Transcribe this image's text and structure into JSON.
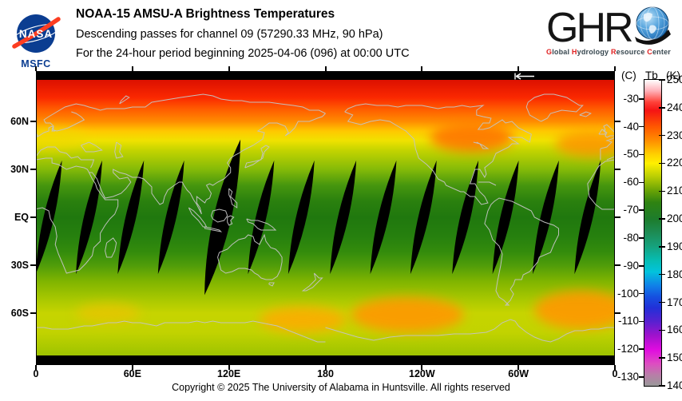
{
  "header": {
    "nasa": {
      "wordmark": "NASA",
      "center": "MSFC"
    },
    "title": "NOAA-15 AMSU-A Brightness Temperatures",
    "line2": "Descending passes for channel 09 (57290.33 MHz, 90 hPa)",
    "line3": "For the 24-hour period beginning 2025-04-06 (096) at 00:00 UTC",
    "ghrc": {
      "letters": "GHR",
      "tagline_words": [
        "Global",
        "Hydrology",
        "Resource",
        "Center"
      ]
    }
  },
  "map": {
    "lat_ticks": [
      {
        "label": "60N",
        "lat": 60
      },
      {
        "label": "30N",
        "lat": 30
      },
      {
        "label": "EQ",
        "lat": 0
      },
      {
        "label": "30S",
        "lat": -30
      },
      {
        "label": "60S",
        "lat": -60
      }
    ],
    "lon_ticks": [
      {
        "label": "0",
        "lon": 0
      },
      {
        "label": "60E",
        "lon": 60
      },
      {
        "label": "120E",
        "lon": 120
      },
      {
        "label": "180",
        "lon": 180
      },
      {
        "label": "120W",
        "lon": 240
      },
      {
        "label": "60W",
        "lon": 300
      },
      {
        "label": "0",
        "lon": 360
      }
    ]
  },
  "colorbar": {
    "header_left": "(C)",
    "header_mid": "Tb",
    "header_right": "(K)",
    "kelvin_ticks": [
      250,
      240,
      230,
      220,
      210,
      200,
      190,
      180,
      170,
      160,
      150,
      140
    ],
    "celsius_ticks": [
      -30,
      -40,
      -50,
      -60,
      -70,
      -80,
      -90,
      -100,
      -110,
      -120,
      -130
    ]
  },
  "footer": {
    "copyright": "Copyright © 2025 The University of Alabama in Huntsville.  All rights reserved"
  },
  "chart_data": {
    "type": "heatmap",
    "title": "NOAA-15 AMSU-A Brightness Temperatures",
    "satellite": "NOAA-15",
    "instrument": "AMSU-A",
    "channel": "09",
    "frequency_mhz": 57290.33,
    "pressure_level_hpa": 90,
    "pass_type": "Descending",
    "period": "24-hour period beginning 2025-04-06 (096) at 00:00 UTC",
    "projection": "equirectangular world map, longitude 0E at left edge through 180 to 0 at right edge, 90N at top",
    "variable": "Brightness temperature Tb",
    "units_kelvin_range": [
      140,
      250
    ],
    "colorbar_gradient": [
      {
        "k": 250,
        "color": "#ffffff"
      },
      {
        "k": 246,
        "color": "#ffb0b8"
      },
      {
        "k": 242,
        "color": "#ff4038"
      },
      {
        "k": 239,
        "color": "#f51414"
      },
      {
        "k": 233,
        "color": "#ff5a00"
      },
      {
        "k": 228,
        "color": "#ff9000"
      },
      {
        "k": 223,
        "color": "#ffd200"
      },
      {
        "k": 220,
        "color": "#fff000"
      },
      {
        "k": 215,
        "color": "#b6cc04"
      },
      {
        "k": 210,
        "color": "#66a106"
      },
      {
        "k": 206,
        "color": "#2f8311"
      },
      {
        "k": 200,
        "color": "#1d7c2c"
      },
      {
        "k": 195,
        "color": "#1d8c55"
      },
      {
        "k": 190,
        "color": "#16a27e"
      },
      {
        "k": 185,
        "color": "#06bdb4"
      },
      {
        "k": 181,
        "color": "#02c3dc"
      },
      {
        "k": 176,
        "color": "#1080e8"
      },
      {
        "k": 172,
        "color": "#1550e0"
      },
      {
        "k": 168,
        "color": "#2230d8"
      },
      {
        "k": 163,
        "color": "#5a20d0"
      },
      {
        "k": 158,
        "color": "#a012cc"
      },
      {
        "k": 153,
        "color": "#e00ce0"
      },
      {
        "k": 148,
        "color": "#de4cc2"
      },
      {
        "k": 144,
        "color": "#b87ea8"
      },
      {
        "k": 140,
        "color": "#999999"
      }
    ],
    "zonal_gradient": [
      {
        "lat": 86,
        "color": "#dc1000"
      },
      {
        "lat": 75,
        "color": "#fa2800"
      },
      {
        "lat": 68,
        "color": "#ff5a00"
      },
      {
        "lat": 60,
        "color": "#ff8c00"
      },
      {
        "lat": 54,
        "color": "#ffc800"
      },
      {
        "lat": 48,
        "color": "#f0e200"
      },
      {
        "lat": 42,
        "color": "#c4d400"
      },
      {
        "lat": 30,
        "color": "#84ba08"
      },
      {
        "lat": 20,
        "color": "#46960e"
      },
      {
        "lat": 10,
        "color": "#2a800e"
      },
      {
        "lat": 0,
        "color": "#20780e"
      },
      {
        "lat": -12,
        "color": "#26800e"
      },
      {
        "lat": -22,
        "color": "#348c0c"
      },
      {
        "lat": -30,
        "color": "#4f9c0a"
      },
      {
        "lat": -40,
        "color": "#7fb400"
      },
      {
        "lat": -52,
        "color": "#abc900"
      },
      {
        "lat": -60,
        "color": "#c6d400"
      },
      {
        "lat": -72,
        "color": "#c2d300"
      },
      {
        "lat": -86,
        "color": "#9fc400"
      }
    ],
    "zonal_mean_tb_k": [
      {
        "lat": 85,
        "tb": 245
      },
      {
        "lat": 75,
        "tb": 241
      },
      {
        "lat": 65,
        "tb": 232
      },
      {
        "lat": 60,
        "tb": 228
      },
      {
        "lat": 50,
        "tb": 220
      },
      {
        "lat": 40,
        "tb": 213
      },
      {
        "lat": 30,
        "tb": 209
      },
      {
        "lat": 15,
        "tb": 203
      },
      {
        "lat": 0,
        "tb": 201
      },
      {
        "lat": -15,
        "tb": 204
      },
      {
        "lat": -30,
        "tb": 208
      },
      {
        "lat": -45,
        "tb": 214
      },
      {
        "lat": -55,
        "tb": 219
      },
      {
        "lat": -62,
        "tb": 223
      },
      {
        "lat": -75,
        "tb": 218
      },
      {
        "lat": -86,
        "tb": 214
      }
    ],
    "warm_anomalies": [
      {
        "lon_e": 166,
        "lat": -64,
        "tb_k": 228,
        "color": "#ffaa00",
        "rx_deg": 27,
        "ry_deg": 8,
        "opacity": 0.85
      },
      {
        "lon_e": 231,
        "lat": -61,
        "tb_k": 229,
        "color": "#ff9800",
        "rx_deg": 35,
        "ry_deg": 11,
        "opacity": 0.9
      },
      {
        "lon_e": 339,
        "lat": -58,
        "tb_k": 229,
        "color": "#ff9800",
        "rx_deg": 29,
        "ry_deg": 12,
        "opacity": 0.9
      },
      {
        "lon_e": 45,
        "lat": -60,
        "tb_k": 222,
        "color": "#e8c400",
        "rx_deg": 20,
        "ry_deg": 6,
        "opacity": 0.8
      },
      {
        "lon_e": 271,
        "lat": 50,
        "tb_k": 232,
        "color": "#ff7000",
        "rx_deg": 26,
        "ry_deg": 9,
        "opacity": 0.85
      },
      {
        "lon_e": 345,
        "lat": 46,
        "tb_k": 229,
        "color": "#ff9000",
        "rx_deg": 22,
        "ry_deg": 8,
        "opacity": 0.8
      },
      {
        "lon_e": 10,
        "lat": 49,
        "tb_k": 224,
        "color": "#f0d800",
        "rx_deg": 22,
        "ry_deg": 7,
        "opacity": 0.7
      }
    ],
    "data_gaps": {
      "shape": "black lens-shaped gaps between descending satellite swaths, tilted",
      "tilt_deg": 13,
      "equator_lon_e": [
        8,
        33,
        59,
        84,
        116,
        140,
        165,
        191,
        216,
        241,
        267,
        292,
        317,
        343
      ],
      "wide_gap_lon_e": 116
    },
    "no_data_polar_bands": "solid black strips along top and bottom edges of the map"
  }
}
